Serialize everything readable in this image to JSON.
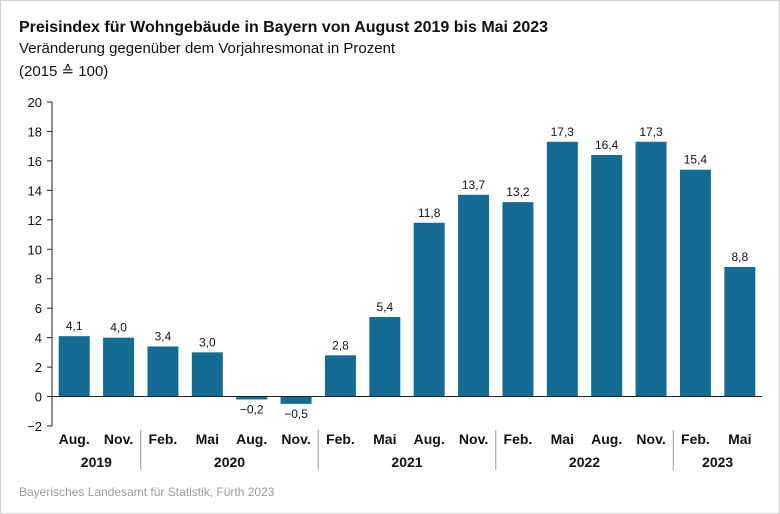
{
  "title": "Preisindex für Wohngebäude in Bayern von August 2019 bis Mai 2023",
  "subtitle": "Veränderung gegenüber dem Vorjahresmonat in Prozent",
  "subtitle2": "(2015 ≙ 100)",
  "source": "Bayerisches Landesamt für Statistik, Fürth 2023",
  "colors": {
    "bar": "#136d93",
    "axis": "#222222",
    "grid": "#cccccc"
  },
  "chart_data": {
    "type": "bar",
    "categories": [
      "Aug.",
      "Nov.",
      "Feb.",
      "Mai",
      "Aug.",
      "Nov.",
      "Feb.",
      "Mai",
      "Aug.",
      "Nov.",
      "Feb.",
      "Mai",
      "Aug.",
      "Nov.",
      "Feb.",
      "Mai"
    ],
    "value_labels": [
      "4,1",
      "4,0",
      "3,4",
      "3,0",
      "−0,2",
      "−0,5",
      "2,8",
      "5,4",
      "11,8",
      "13,7",
      "13,2",
      "17,3",
      "16,4",
      "17,3",
      "15,4",
      "8,8"
    ],
    "values": [
      4.1,
      4.0,
      3.4,
      3.0,
      -0.2,
      -0.5,
      2.8,
      5.4,
      11.8,
      13.7,
      13.2,
      17.3,
      16.4,
      17.3,
      15.4,
      8.8
    ],
    "groups": [
      {
        "label": "2019",
        "count": 2
      },
      {
        "label": "2020",
        "count": 4
      },
      {
        "label": "2021",
        "count": 4
      },
      {
        "label": "2022",
        "count": 4
      },
      {
        "label": "2023",
        "count": 2
      }
    ],
    "yticks": [
      "20",
      "18",
      "16",
      "14",
      "12",
      "10",
      "8",
      "6",
      "4",
      "2",
      "0",
      "−2"
    ],
    "ylim": [
      -2,
      20
    ],
    "ytick_step": 2,
    "grid": false
  }
}
